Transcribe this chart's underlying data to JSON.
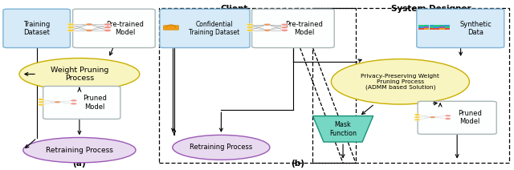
{
  "fig_width": 6.4,
  "fig_height": 2.12,
  "dpi": 100,
  "bg_color": "#ffffff",
  "panel_a_label": "(a)",
  "panel_b_label": "(b)",
  "client_label": "Client",
  "sysdesign_label": "System Designer"
}
